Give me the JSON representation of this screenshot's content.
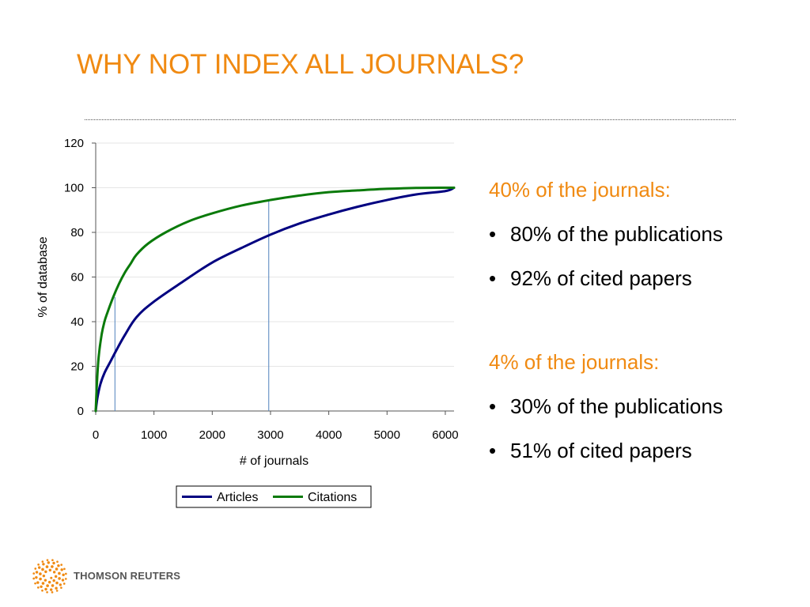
{
  "title": "WHY NOT INDEX ALL JOURNALS?",
  "side_panel": {
    "group1": {
      "heading": "40% of the journals:",
      "bullets": [
        "80% of the publications",
        "92% of cited papers"
      ]
    },
    "group2": {
      "heading": "4% of the journals:",
      "bullets": [
        "30% of the publications",
        "51% of cited papers"
      ]
    },
    "bullet_char": "•"
  },
  "logo": {
    "text": "THOMSON REUTERS",
    "color": "#f08a12"
  },
  "colors": {
    "title": "#f08a12",
    "articles": "#000080",
    "citations": "#0a7a0a",
    "marker": "#4f81bd"
  },
  "chart_data": {
    "type": "line",
    "xlabel": "# of journals",
    "ylabel": "% of database",
    "xlim": [
      0,
      6150
    ],
    "ylim": [
      0,
      120
    ],
    "xticks": [
      0,
      1000,
      2000,
      3000,
      4000,
      5000,
      6000
    ],
    "yticks": [
      0,
      20,
      40,
      60,
      80,
      100,
      120
    ],
    "grid": true,
    "legend": "bottom",
    "series": [
      {
        "name": "Articles",
        "color": "#000080",
        "x": [
          0,
          30,
          80,
          150,
          250,
          350,
          500,
          700,
          1000,
          1500,
          2000,
          2500,
          3000,
          3500,
          4000,
          4500,
          5000,
          5500,
          6000,
          6150
        ],
        "y": [
          0,
          6,
          12,
          17,
          22,
          27,
          34,
          42,
          49,
          58,
          66.5,
          73,
          79,
          84,
          88,
          91.5,
          94.5,
          97,
          98.5,
          100
        ]
      },
      {
        "name": "Citations",
        "color": "#0a7a0a",
        "x": [
          0,
          20,
          50,
          100,
          150,
          200,
          300,
          400,
          500,
          600,
          700,
          900,
          1200,
          1600,
          2000,
          2500,
          3000,
          3500,
          4000,
          4500,
          5000,
          5500,
          6000,
          6150
        ],
        "y": [
          0,
          12,
          24,
          34,
          40,
          44,
          51,
          57,
          62,
          66,
          70,
          75,
          80,
          85,
          88.5,
          92,
          94.5,
          96.5,
          98,
          98.8,
          99.5,
          99.9,
          100,
          100
        ]
      }
    ],
    "markers": [
      {
        "x": 330,
        "y": 51
      },
      {
        "x": 2970,
        "y": 94
      }
    ]
  }
}
